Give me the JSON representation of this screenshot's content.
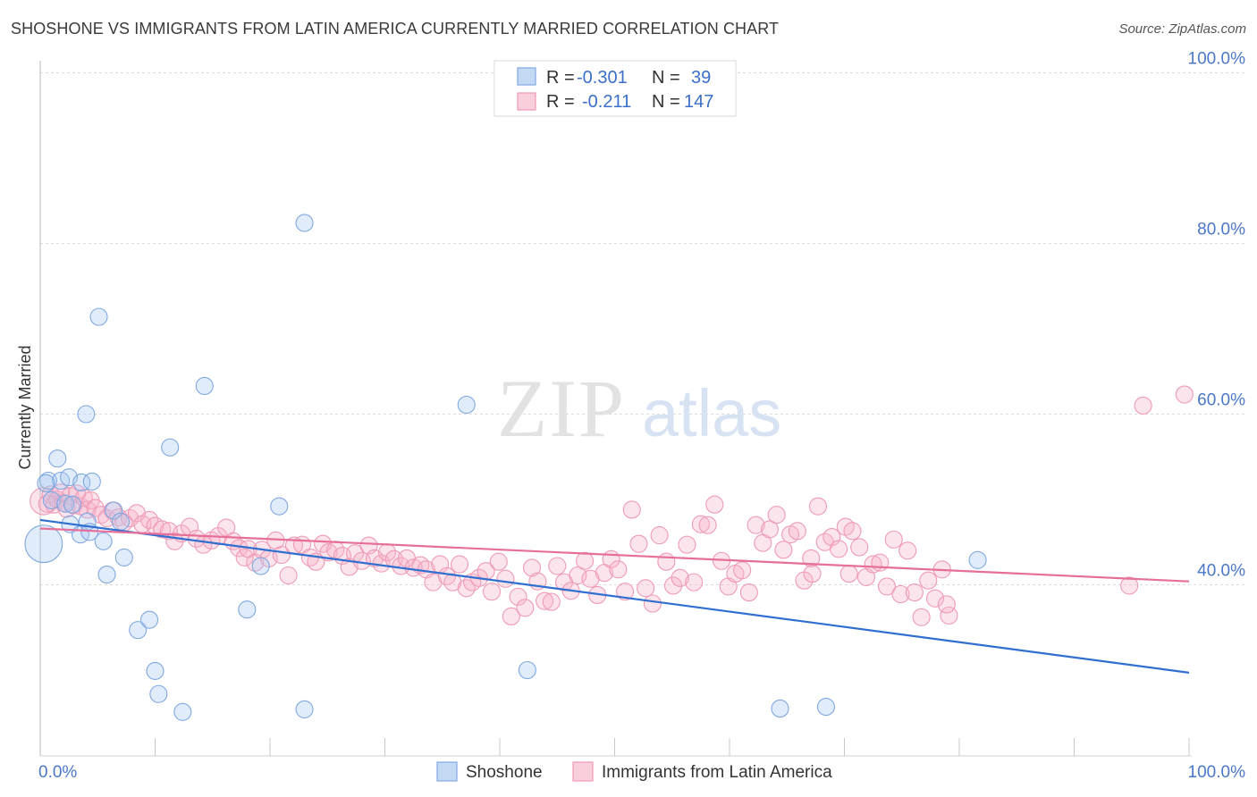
{
  "title": "SHOSHONE VS IMMIGRANTS FROM LATIN AMERICA CURRENTLY MARRIED CORRELATION CHART",
  "source": "Source: ZipAtlas.com",
  "watermark": {
    "zip": "ZIP",
    "atlas": "atlas"
  },
  "legend_top": {
    "rows": [
      {
        "r_label": "R =",
        "r_value": "-0.301",
        "n_label": "N =",
        "n_value": "39"
      },
      {
        "r_label": "R =",
        "r_value": "-0.211",
        "n_label": "N =",
        "n_value": "147"
      }
    ]
  },
  "chart_data": {
    "type": "scatter",
    "ylabel": "Currently Married",
    "xlim": [
      0,
      100
    ],
    "ylim": [
      20,
      100
    ],
    "x_tick_labels": [
      "0.0%",
      "100.0%"
    ],
    "y_ticks": [
      {
        "value": 40,
        "label": "40.0%"
      },
      {
        "value": 60,
        "label": "60.0%"
      },
      {
        "value": 80,
        "label": "80.0%"
      },
      {
        "value": 100,
        "label": "100.0%"
      }
    ],
    "grid": true,
    "legend_position": "bottom",
    "series": [
      {
        "name": "Shoshone",
        "color": "#8ab4e8",
        "line_color": "#2f6fcf",
        "trend": {
          "x0": 0,
          "y0": 47.6,
          "x1": 100,
          "y1": 29.7
        },
        "points": [
          [
            0.3,
            44.8,
            2.2
          ],
          [
            0.7,
            52.2,
            1
          ],
          [
            1.0,
            49.9,
            1
          ],
          [
            1.5,
            54.8,
            1
          ],
          [
            1.8,
            52.2,
            1
          ],
          [
            2.2,
            49.5,
            1
          ],
          [
            2.5,
            52.6,
            1
          ],
          [
            2.6,
            47.1,
            1
          ],
          [
            2.8,
            49.4,
            1
          ],
          [
            3.5,
            45.9,
            1
          ],
          [
            3.6,
            52.0,
            1
          ],
          [
            4.1,
            47.4,
            1
          ],
          [
            4.3,
            46.2,
            1
          ],
          [
            4.5,
            52.1,
            1
          ],
          [
            5.1,
            71.4,
            1
          ],
          [
            4.0,
            60.0,
            1
          ],
          [
            5.5,
            45.1,
            1
          ],
          [
            5.8,
            41.2,
            1
          ],
          [
            6.4,
            48.7,
            1
          ],
          [
            7.0,
            47.4,
            1
          ],
          [
            7.3,
            43.2,
            1
          ],
          [
            8.5,
            34.7,
            1
          ],
          [
            9.5,
            35.9,
            1
          ],
          [
            10.0,
            29.9,
            1
          ],
          [
            10.3,
            27.2,
            1
          ],
          [
            11.3,
            56.1,
            1
          ],
          [
            12.4,
            25.1,
            1
          ],
          [
            14.3,
            63.3,
            1
          ],
          [
            18.0,
            37.1,
            1
          ],
          [
            19.2,
            42.2,
            1
          ],
          [
            20.8,
            49.2,
            1
          ],
          [
            23.0,
            82.4,
            1
          ],
          [
            23.0,
            25.4,
            1
          ],
          [
            37.1,
            61.1,
            1
          ],
          [
            42.4,
            30.0,
            1
          ],
          [
            64.4,
            25.5,
            1
          ],
          [
            68.4,
            25.7,
            1
          ],
          [
            81.6,
            42.9,
            1
          ],
          [
            0.5,
            51.9,
            1
          ]
        ]
      },
      {
        "name": "Immigrants from Latin America",
        "color": "#f4a6c0",
        "line_color": "#e56f9a",
        "trend": {
          "x0": 0,
          "y0": 46.6,
          "x1": 100,
          "y1": 40.4
        },
        "points": [
          [
            0.3,
            49.8,
            1.6
          ],
          [
            0.6,
            49.5,
            1
          ],
          [
            0.9,
            50.6,
            1
          ],
          [
            1.2,
            49.4,
            1
          ],
          [
            1.5,
            50.0,
            1
          ],
          [
            1.8,
            50.8,
            1
          ],
          [
            2.0,
            49.6,
            1
          ],
          [
            2.3,
            48.9,
            1
          ],
          [
            2.6,
            50.4,
            1
          ],
          [
            2.9,
            49.3,
            1
          ],
          [
            3.2,
            50.7,
            1
          ],
          [
            3.5,
            49.2,
            1
          ],
          [
            3.8,
            50.2,
            1
          ],
          [
            4.1,
            48.8,
            1
          ],
          [
            4.4,
            49.9,
            1
          ],
          [
            4.8,
            49.0,
            1
          ],
          [
            5.3,
            48.2,
            1
          ],
          [
            5.8,
            47.8,
            1
          ],
          [
            6.3,
            48.7,
            1
          ],
          [
            6.8,
            47.9,
            1
          ],
          [
            7.3,
            47.3,
            1
          ],
          [
            7.8,
            47.8,
            1
          ],
          [
            8.4,
            48.4,
            1
          ],
          [
            8.9,
            47.1,
            1
          ],
          [
            9.5,
            47.6,
            1
          ],
          [
            10.0,
            46.9,
            1
          ],
          [
            10.6,
            46.5,
            1
          ],
          [
            11.2,
            46.3,
            1
          ],
          [
            11.7,
            45.1,
            1
          ],
          [
            12.3,
            46.0,
            1
          ],
          [
            13.0,
            46.8,
            1
          ],
          [
            13.6,
            45.4,
            1
          ],
          [
            14.2,
            44.7,
            1
          ],
          [
            14.9,
            45.2,
            1
          ],
          [
            15.5,
            45.7,
            1
          ],
          [
            16.2,
            46.7,
            1
          ],
          [
            16.8,
            45.1,
            1
          ],
          [
            17.3,
            44.3,
            1
          ],
          [
            17.8,
            43.2,
            1
          ],
          [
            18.1,
            44.2,
            1
          ],
          [
            18.7,
            42.6,
            1
          ],
          [
            19.3,
            44.1,
            1
          ],
          [
            19.9,
            43.1,
            1
          ],
          [
            20.5,
            45.2,
            1
          ],
          [
            21.0,
            43.5,
            1
          ],
          [
            21.6,
            41.1,
            1
          ],
          [
            22.1,
            44.6,
            1
          ],
          [
            22.8,
            44.7,
            1
          ],
          [
            23.5,
            43.2,
            1
          ],
          [
            24.0,
            42.7,
            1
          ],
          [
            24.6,
            44.8,
            1
          ],
          [
            25.1,
            43.8,
            1
          ],
          [
            25.7,
            44.1,
            1
          ],
          [
            26.3,
            43.4,
            1
          ],
          [
            26.9,
            42.1,
            1
          ],
          [
            27.4,
            43.7,
            1
          ],
          [
            28.0,
            42.8,
            1
          ],
          [
            28.6,
            44.6,
            1
          ],
          [
            29.1,
            43.1,
            1
          ],
          [
            29.7,
            42.5,
            1
          ],
          [
            30.2,
            43.8,
            1
          ],
          [
            30.8,
            43.0,
            1
          ],
          [
            31.4,
            42.2,
            1
          ],
          [
            31.9,
            43.1,
            1
          ],
          [
            32.5,
            42.0,
            1
          ],
          [
            33.1,
            42.3,
            1
          ],
          [
            33.6,
            41.8,
            1
          ],
          [
            34.2,
            40.3,
            1
          ],
          [
            34.8,
            42.4,
            1
          ],
          [
            35.4,
            41.0,
            1
          ],
          [
            35.9,
            40.3,
            1
          ],
          [
            36.5,
            42.4,
            1
          ],
          [
            37.1,
            39.6,
            1
          ],
          [
            37.6,
            40.3,
            1
          ],
          [
            38.2,
            40.8,
            1
          ],
          [
            38.8,
            41.6,
            1
          ],
          [
            39.3,
            39.2,
            1
          ],
          [
            39.9,
            42.7,
            1
          ],
          [
            40.5,
            40.7,
            1
          ],
          [
            41.0,
            36.3,
            1
          ],
          [
            41.6,
            38.6,
            1
          ],
          [
            42.2,
            37.3,
            1
          ],
          [
            42.8,
            42.0,
            1
          ],
          [
            43.3,
            40.4,
            1
          ],
          [
            43.9,
            38.1,
            1
          ],
          [
            44.5,
            38.0,
            1
          ],
          [
            45.0,
            42.2,
            1
          ],
          [
            45.6,
            40.3,
            1
          ],
          [
            46.2,
            39.3,
            1
          ],
          [
            46.8,
            41.1,
            1
          ],
          [
            47.4,
            42.8,
            1
          ],
          [
            47.9,
            40.7,
            1
          ],
          [
            48.5,
            38.8,
            1
          ],
          [
            49.1,
            41.4,
            1
          ],
          [
            49.7,
            43.0,
            1
          ],
          [
            50.3,
            41.8,
            1
          ],
          [
            50.9,
            39.2,
            1
          ],
          [
            51.5,
            48.8,
            1
          ],
          [
            52.1,
            44.8,
            1
          ],
          [
            52.7,
            39.6,
            1
          ],
          [
            53.3,
            37.8,
            1
          ],
          [
            53.9,
            45.8,
            1
          ],
          [
            54.5,
            42.7,
            1
          ],
          [
            55.1,
            39.9,
            1
          ],
          [
            55.7,
            40.8,
            1
          ],
          [
            56.3,
            44.7,
            1
          ],
          [
            56.9,
            40.3,
            1
          ],
          [
            57.5,
            47.1,
            1
          ],
          [
            58.1,
            47.0,
            1
          ],
          [
            58.7,
            49.4,
            1
          ],
          [
            59.3,
            42.8,
            1
          ],
          [
            59.9,
            39.8,
            1
          ],
          [
            60.5,
            41.3,
            1
          ],
          [
            61.1,
            41.7,
            1
          ],
          [
            61.7,
            39.1,
            1
          ],
          [
            62.3,
            47.0,
            1
          ],
          [
            62.9,
            44.9,
            1
          ],
          [
            63.5,
            46.5,
            1
          ],
          [
            64.1,
            48.2,
            1
          ],
          [
            64.7,
            44.1,
            1
          ],
          [
            65.3,
            45.9,
            1
          ],
          [
            65.9,
            46.3,
            1
          ],
          [
            66.5,
            40.5,
            1
          ],
          [
            67.1,
            43.1,
            1
          ],
          [
            67.7,
            49.2,
            1
          ],
          [
            68.3,
            45.0,
            1
          ],
          [
            68.9,
            45.6,
            1
          ],
          [
            69.5,
            44.2,
            1
          ],
          [
            70.1,
            46.8,
            1
          ],
          [
            70.7,
            46.3,
            1
          ],
          [
            71.3,
            44.4,
            1
          ],
          [
            71.9,
            40.9,
            1
          ],
          [
            72.5,
            42.4,
            1
          ],
          [
            73.1,
            42.6,
            1
          ],
          [
            73.7,
            39.8,
            1
          ],
          [
            74.3,
            45.3,
            1
          ],
          [
            74.9,
            38.9,
            1
          ],
          [
            75.5,
            44.0,
            1
          ],
          [
            76.1,
            39.1,
            1
          ],
          [
            76.7,
            36.2,
            1
          ],
          [
            77.3,
            40.5,
            1
          ],
          [
            77.9,
            38.4,
            1
          ],
          [
            78.5,
            41.8,
            1
          ],
          [
            79.1,
            36.4,
            1
          ],
          [
            67.2,
            41.3,
            1
          ],
          [
            70.4,
            41.3,
            1
          ],
          [
            78.9,
            37.7,
            1
          ],
          [
            94.8,
            39.9,
            1
          ],
          [
            96.0,
            61.0,
            1
          ],
          [
            99.6,
            62.3,
            1
          ]
        ]
      }
    ]
  }
}
